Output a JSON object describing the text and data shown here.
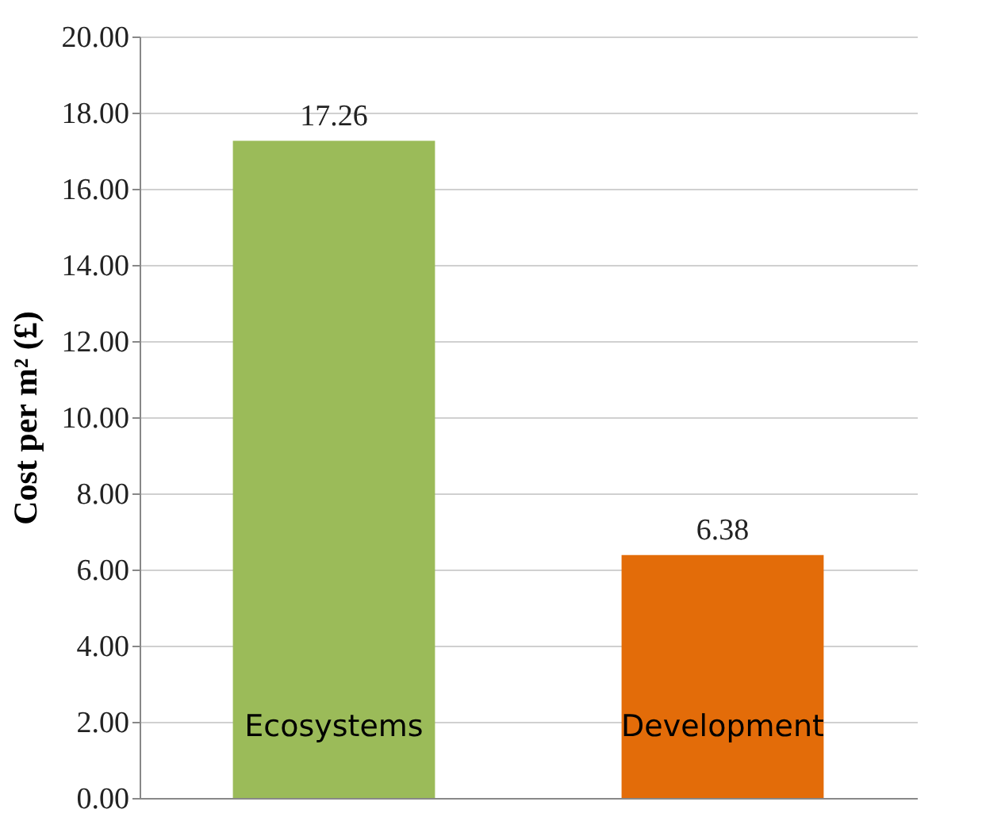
{
  "chart_data": {
    "type": "bar",
    "ylabel": "Cost per m² (£)",
    "categories": [
      "Ecosystems",
      "Development"
    ],
    "values": [
      17.26,
      6.38
    ],
    "colors": [
      "#9bbb59",
      "#e36c09"
    ],
    "ylim": [
      0,
      20
    ],
    "yticks": [
      {
        "value": 0,
        "label": "0.00"
      },
      {
        "value": 2,
        "label": "2.00"
      },
      {
        "value": 4,
        "label": "4.00"
      },
      {
        "value": 6,
        "label": "6.00"
      },
      {
        "value": 8,
        "label": "8.00"
      },
      {
        "value": 10,
        "label": "10.00"
      },
      {
        "value": 12,
        "label": "12.00"
      },
      {
        "value": 14,
        "label": "14.00"
      },
      {
        "value": 16,
        "label": "16.00"
      },
      {
        "value": 18,
        "label": "18.00"
      },
      {
        "value": 20,
        "label": "20.00"
      }
    ],
    "grid": "y",
    "data_labels": true
  }
}
